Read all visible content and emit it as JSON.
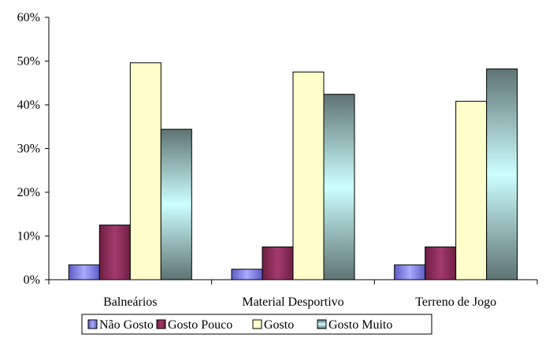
{
  "chart_data": {
    "type": "bar",
    "categories": [
      "Balneários",
      "Material Desportivo",
      "Terreno de Jogo"
    ],
    "series": [
      {
        "name": "Não Gosto",
        "values": [
          3.4,
          2.4,
          3.4
        ],
        "color": "#9999ff"
      },
      {
        "name": "Gosto Pouco",
        "values": [
          12.5,
          7.5,
          7.5
        ],
        "color": "#993366"
      },
      {
        "name": "Gosto",
        "values": [
          49.6,
          47.5,
          40.8
        ],
        "color": "#ffffcc"
      },
      {
        "name": "Gosto Muito",
        "values": [
          34.4,
          42.4,
          48.2
        ],
        "color": "#ccffff"
      }
    ],
    "yticks": [
      "0%",
      "10%",
      "20%",
      "30%",
      "40%",
      "50%",
      "60%"
    ],
    "ylim": [
      0,
      60
    ],
    "grid": false,
    "legend": "bottom"
  }
}
